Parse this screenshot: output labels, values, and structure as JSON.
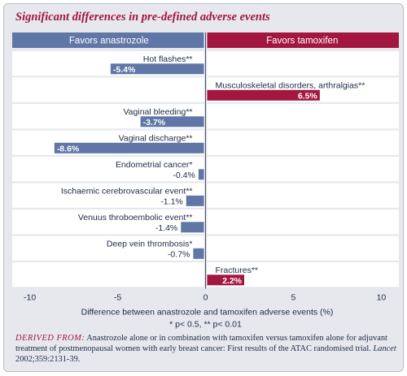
{
  "title": "Significant differences in pre-defined adverse events",
  "chart_data": {
    "type": "bar",
    "orientation": "horizontal",
    "header_left": "Favors anastrozole",
    "header_right": "Favors tamoxifen",
    "categories": [
      "Hot flashes**",
      "Musculoskeletal disorders, arthralgias**",
      "Vaginal bleeding**",
      "Vaginal discharge**",
      "Endometrial cancer*",
      "Ischaemic cerebrovascular event**",
      "Venuus throboembolic event**",
      "Deep vein thrombosis*",
      "Fractures**"
    ],
    "values": [
      -5.4,
      6.5,
      -3.7,
      -8.6,
      -0.4,
      -1.1,
      -1.4,
      -0.7,
      2.2
    ],
    "value_labels": [
      "-5.4%",
      "6.5%",
      "-3.7%",
      "-8.6%",
      "-0.4%",
      "-1.1%",
      "-1.4%",
      "-0.7%",
      "2.2%"
    ],
    "xlim": [
      -11,
      11
    ],
    "xticks": [
      -10,
      -5,
      0,
      5,
      10
    ],
    "xtick_labels": [
      "-10",
      "-5",
      "0",
      "5",
      "10"
    ],
    "xlabel": "Difference between anastrozole and tamoxifen adverse events (%)",
    "note": "* p< 0.5, ** p< 0.01",
    "grid": true,
    "colors": {
      "negative": "#5f76a6",
      "positive": "#a3163f",
      "header_left": "#5f76a6",
      "header_right": "#a3163f",
      "row_background": "#ffffff",
      "panel_background": "#e6e8ee"
    }
  },
  "footer": {
    "source_label": "DERIVED FROM:",
    "source_text": " Anastrozole alone or in combination with tamoxifen versus tamoxifen alone for adjuvant treatment of postmenopausal women with early breast cancer: First results of the ATAC randomised trial. ",
    "journal": "Lancet",
    "citation": " 2002;359:2131-39."
  }
}
